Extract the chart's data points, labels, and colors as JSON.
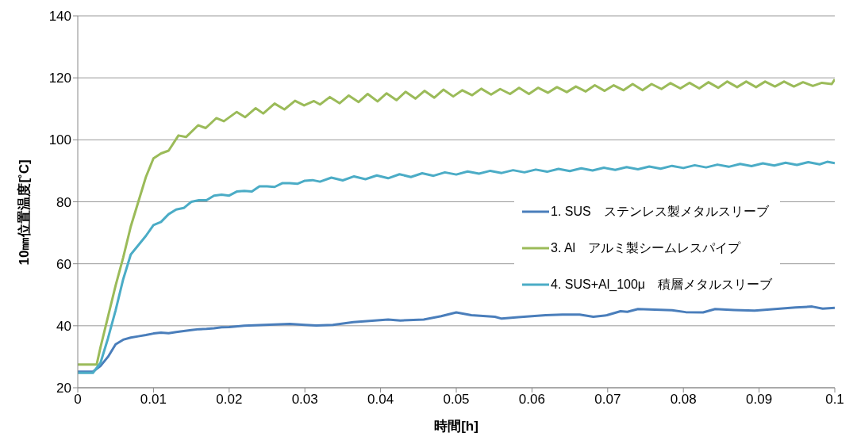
{
  "chart_data": {
    "type": "line",
    "xlabel": "時間[h]",
    "ylabel": "10㎜位置温度[˚C]",
    "xlim": [
      0,
      0.1
    ],
    "xticks": [
      0,
      0.01,
      0.02,
      0.03,
      0.04,
      0.05,
      0.06,
      0.07,
      0.08,
      0.09,
      0.1
    ],
    "ylim": [
      20,
      140
    ],
    "yticks": [
      20,
      40,
      60,
      80,
      100,
      120,
      140
    ],
    "grid": "y",
    "legend": "right",
    "marker": "none",
    "line_style": "solid",
    "series": [
      {
        "name": "1. SUS　ステンレス製メタルスリーブ",
        "color": "#4a7ebb",
        "x": [
          0,
          0.002,
          0.003,
          0.004,
          0.005,
          0.006,
          0.007,
          0.008,
          0.009,
          0.01,
          0.011,
          0.012,
          0.013,
          0.014,
          0.015,
          0.016,
          0.017,
          0.018,
          0.019,
          0.02,
          0.022,
          0.024,
          0.026,
          0.028,
          0.03,
          0.0315,
          0.0337,
          0.0364,
          0.041,
          0.0426,
          0.0457,
          0.048,
          0.05,
          0.052,
          0.0551,
          0.056,
          0.0582,
          0.0618,
          0.064,
          0.0663,
          0.0681,
          0.0699,
          0.0717,
          0.0726,
          0.074,
          0.0785,
          0.0803,
          0.0826,
          0.0842,
          0.0867,
          0.0894,
          0.0921,
          0.0948,
          0.097,
          0.0984,
          0.1
        ],
        "values": [
          25.2,
          25.2,
          27,
          30,
          34,
          35.5,
          36.2,
          36.6,
          37,
          37.5,
          37.8,
          37.6,
          38,
          38.3,
          38.6,
          38.9,
          39,
          39.2,
          39.5,
          39.6,
          40,
          40.2,
          40.4,
          40.6,
          40.3,
          40.1,
          40.3,
          41.2,
          42.0,
          41.7,
          42.0,
          43.1,
          44.3,
          43.4,
          42.9,
          42.3,
          42.8,
          43.4,
          43.6,
          43.6,
          42.9,
          43.4,
          44.7,
          44.5,
          45.4,
          45.0,
          44.4,
          44.3,
          45.4,
          45.1,
          44.9,
          45.4,
          45.9,
          46.2,
          45.5,
          45.8
        ]
      },
      {
        "name": "3. Al　アルミ製シームレスパイプ",
        "color": "#9bbb59",
        "x": [
          0,
          0.0025,
          0.003,
          0.004,
          0.005,
          0.006,
          0.007,
          0.008,
          0.009,
          0.01,
          0.011,
          0.012,
          0.0133,
          0.0143,
          0.0159,
          0.0169,
          0.0183,
          0.0193,
          0.021,
          0.0221,
          0.0235,
          0.0245,
          0.026,
          0.0273,
          0.0287,
          0.0299,
          0.0312,
          0.032,
          0.0333,
          0.0346,
          0.0358,
          0.0371,
          0.0383,
          0.0396,
          0.0408,
          0.0421,
          0.0433,
          0.0446,
          0.0458,
          0.0471,
          0.0483,
          0.0496,
          0.0508,
          0.0521,
          0.0533,
          0.0546,
          0.0558,
          0.0571,
          0.0583,
          0.0596,
          0.0608,
          0.0621,
          0.0633,
          0.0646,
          0.0658,
          0.0671,
          0.0683,
          0.0696,
          0.0708,
          0.0721,
          0.0733,
          0.0746,
          0.0758,
          0.0771,
          0.0783,
          0.0796,
          0.0808,
          0.0821,
          0.0833,
          0.0846,
          0.0858,
          0.0871,
          0.0883,
          0.0896,
          0.0908,
          0.0921,
          0.0933,
          0.0946,
          0.0958,
          0.0971,
          0.0983,
          0.0996,
          0.1
        ],
        "values": [
          27.5,
          27.5,
          33,
          43,
          53,
          62,
          72,
          80,
          88,
          94,
          95.6,
          96.5,
          101.4,
          100.9,
          104.7,
          103.8,
          107,
          106,
          109,
          107.3,
          110.2,
          108.5,
          111.7,
          109.8,
          112.6,
          111.1,
          112.5,
          111.4,
          113.8,
          111.8,
          114.3,
          112.2,
          114.8,
          112.4,
          115.0,
          112.8,
          115.5,
          113.3,
          115.8,
          113.6,
          116.2,
          114.0,
          116.0,
          114.4,
          116.5,
          114.6,
          116.4,
          114.8,
          116.8,
          114.8,
          116.8,
          115.2,
          117.0,
          115.4,
          117.2,
          115.6,
          117.6,
          115.8,
          117.6,
          116.0,
          118.0,
          116.0,
          118.0,
          116.4,
          118.3,
          116.6,
          118.4,
          116.6,
          118.6,
          116.8,
          118.8,
          117.0,
          118.8,
          117.0,
          118.8,
          117.2,
          118.8,
          117.2,
          118.6,
          117.4,
          118.4,
          118.0,
          119.5
        ]
      },
      {
        "name": "4. SUS+Al_100μ　積層メタルスリーブ",
        "color": "#4bacc6",
        "x": [
          0,
          0.002,
          0.003,
          0.004,
          0.005,
          0.006,
          0.007,
          0.008,
          0.009,
          0.01,
          0.011,
          0.012,
          0.013,
          0.014,
          0.015,
          0.016,
          0.017,
          0.018,
          0.019,
          0.02,
          0.021,
          0.022,
          0.023,
          0.024,
          0.025,
          0.026,
          0.027,
          0.028,
          0.029,
          0.03,
          0.031,
          0.032,
          0.0335,
          0.035,
          0.0365,
          0.038,
          0.0395,
          0.041,
          0.0425,
          0.044,
          0.0455,
          0.047,
          0.0485,
          0.05,
          0.0515,
          0.053,
          0.0545,
          0.056,
          0.0575,
          0.059,
          0.0605,
          0.062,
          0.0635,
          0.065,
          0.0665,
          0.068,
          0.0695,
          0.071,
          0.0725,
          0.074,
          0.0755,
          0.077,
          0.0785,
          0.08,
          0.0815,
          0.083,
          0.0845,
          0.086,
          0.0875,
          0.089,
          0.0905,
          0.092,
          0.0935,
          0.095,
          0.0965,
          0.098,
          0.099,
          0.1
        ],
        "values": [
          24.8,
          24.8,
          28,
          36,
          45,
          55,
          63,
          66,
          69,
          72.5,
          73.5,
          76,
          77.5,
          78,
          80,
          80.5,
          80.5,
          82,
          82.3,
          82,
          83.3,
          83.5,
          83.3,
          85,
          85,
          84.8,
          86,
          86,
          85.8,
          86.8,
          87,
          86.5,
          87.8,
          86.9,
          88.2,
          87.3,
          88.5,
          87.6,
          88.9,
          88.0,
          89.2,
          88.4,
          89.5,
          88.8,
          89.8,
          89.1,
          90.0,
          89.3,
          90.2,
          89.5,
          90.4,
          89.7,
          90.6,
          89.9,
          90.8,
          90.1,
          91.0,
          90.3,
          91.2,
          90.5,
          91.4,
          90.7,
          91.6,
          90.9,
          91.8,
          91.1,
          92.0,
          91.3,
          92.2,
          91.5,
          92.4,
          91.7,
          92.6,
          91.9,
          92.8,
          92.1,
          92.9,
          92.5
        ]
      }
    ]
  }
}
